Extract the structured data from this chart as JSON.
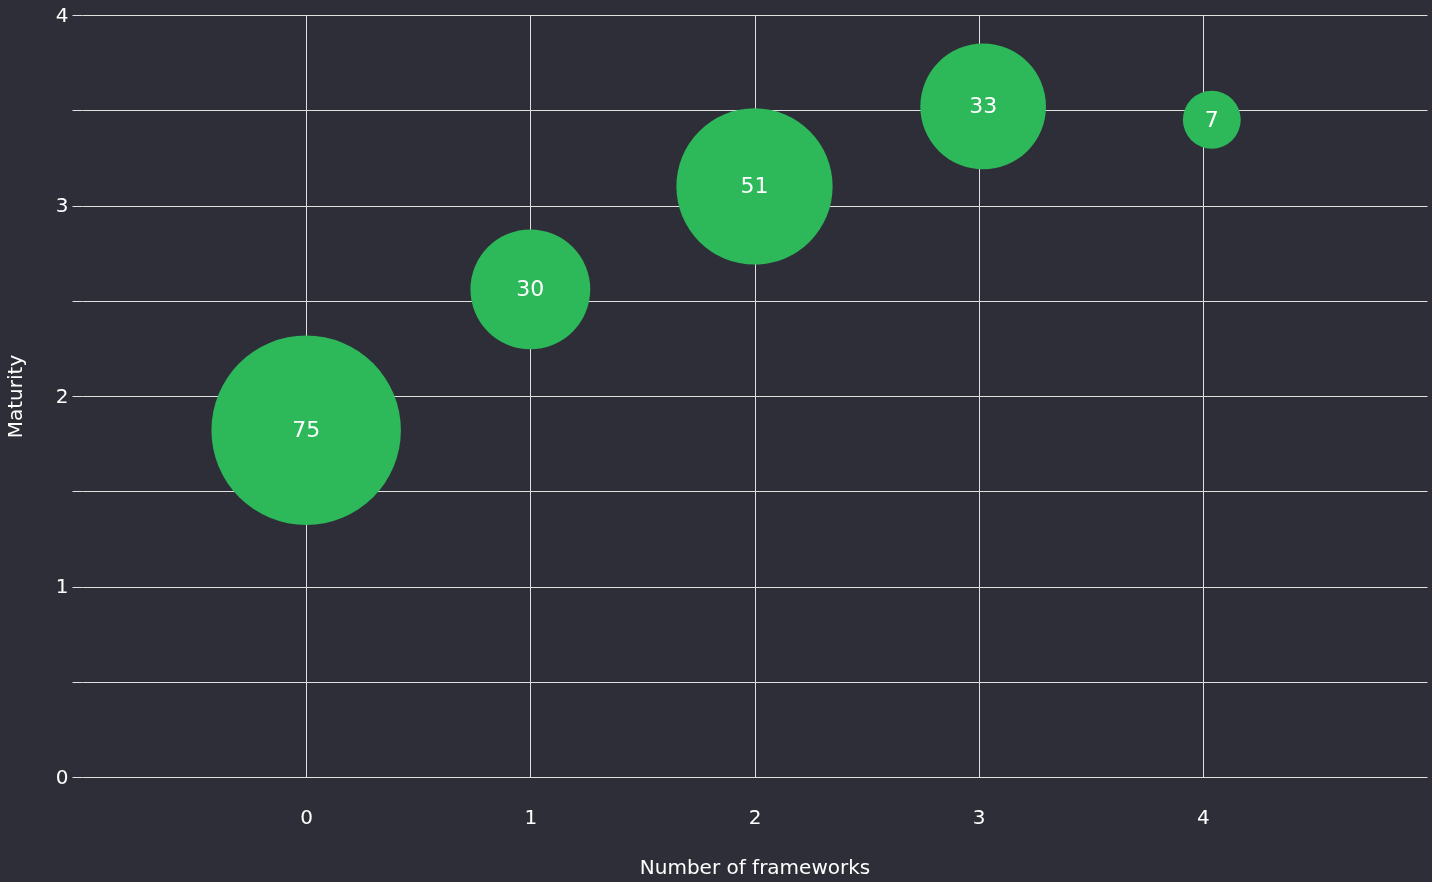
{
  "chart_data": {
    "type": "bubble",
    "xlabel": "Number of frameworks",
    "ylabel": "Maturity",
    "x": [
      0,
      1,
      2,
      3.02,
      4.04
    ],
    "series": [
      {
        "color": "#2db85a",
        "values": [
          1.82,
          2.56,
          3.1,
          3.52,
          3.45
        ],
        "sizes": [
          75,
          30,
          51,
          33,
          7
        ],
        "value_labels": [
          "75",
          "30",
          "51",
          "33",
          "7"
        ]
      }
    ],
    "xlim": [
      -1,
      5
    ],
    "xticks": [
      0,
      1,
      2,
      3,
      4
    ],
    "ylim": [
      0,
      4
    ],
    "yticks": [
      0,
      {
        "value": 0.5,
        "label": null
      },
      1,
      {
        "value": 1.5,
        "label": null
      },
      2,
      {
        "value": 2.5,
        "label": null
      },
      3,
      {
        "value": 3.5,
        "label": null
      },
      4
    ],
    "grid": true,
    "legend": false
  }
}
